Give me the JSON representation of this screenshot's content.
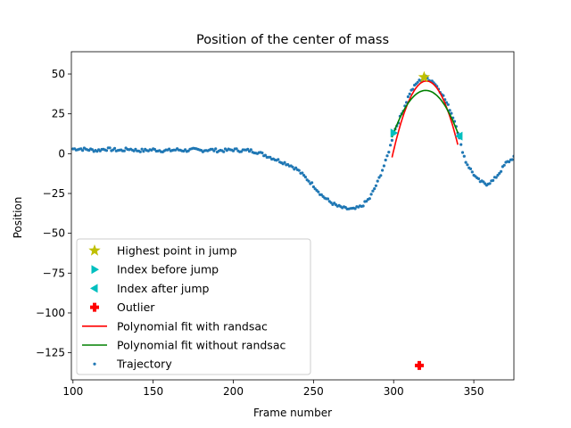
{
  "chart_data": {
    "type": "scatter",
    "title": "Position of the center of mass",
    "xlabel": "Frame number",
    "ylabel": "Position",
    "xlim": [
      99,
      375
    ],
    "ylim": [
      -142,
      64
    ],
    "xticks": [
      100,
      150,
      200,
      250,
      300,
      350
    ],
    "yticks": [
      50,
      25,
      0,
      -25,
      -50,
      -75,
      -100,
      -125
    ],
    "xtick_labels": [
      "100",
      "150",
      "200",
      "250",
      "300",
      "350"
    ],
    "ytick_labels": [
      "50",
      "25",
      "0",
      "−25",
      "−50",
      "−75",
      "−100",
      "−125"
    ],
    "grid": false,
    "legend_position": "lower-left",
    "trajectory_anchors": [
      [
        100,
        3
      ],
      [
        105,
        3
      ],
      [
        110,
        2.5
      ],
      [
        115,
        2
      ],
      [
        120,
        3
      ],
      [
        125,
        2.5
      ],
      [
        130,
        2
      ],
      [
        135,
        3
      ],
      [
        140,
        2
      ],
      [
        145,
        2
      ],
      [
        150,
        2.5
      ],
      [
        155,
        2
      ],
      [
        160,
        2
      ],
      [
        165,
        2.5
      ],
      [
        170,
        2
      ],
      [
        175,
        2.5
      ],
      [
        180,
        2
      ],
      [
        185,
        2.5
      ],
      [
        190,
        2
      ],
      [
        195,
        2
      ],
      [
        200,
        2.5
      ],
      [
        205,
        2
      ],
      [
        210,
        2
      ],
      [
        215,
        1
      ],
      [
        220,
        -1
      ],
      [
        225,
        -3
      ],
      [
        230,
        -5
      ],
      [
        235,
        -7
      ],
      [
        240,
        -10
      ],
      [
        245,
        -15
      ],
      [
        250,
        -20
      ],
      [
        255,
        -26
      ],
      [
        260,
        -30
      ],
      [
        265,
        -33
      ],
      [
        270,
        -34.5
      ],
      [
        275,
        -35
      ],
      [
        280,
        -33
      ],
      [
        285,
        -28
      ],
      [
        290,
        -18
      ],
      [
        295,
        -5
      ],
      [
        298,
        5
      ],
      [
        300,
        13
      ],
      [
        305,
        25
      ],
      [
        310,
        38
      ],
      [
        315,
        45
      ],
      [
        320,
        48
      ],
      [
        325,
        45
      ],
      [
        330,
        38
      ],
      [
        335,
        28
      ],
      [
        339,
        18
      ],
      [
        342,
        5
      ],
      [
        345,
        -5
      ],
      [
        348,
        -10
      ],
      [
        352,
        -16
      ],
      [
        355,
        -18
      ],
      [
        358,
        -19
      ],
      [
        362,
        -17
      ],
      [
        366,
        -12
      ],
      [
        370,
        -6
      ],
      [
        373,
        -4
      ],
      [
        375,
        -2
      ]
    ],
    "trajectory_noise": 1.0,
    "highest_point": {
      "x": 319,
      "y": 48
    },
    "index_before_jump": {
      "x": 300,
      "y": 13
    },
    "index_after_jump": {
      "x": 341,
      "y": 11
    },
    "outlier": {
      "x": 316,
      "y": -133
    },
    "fit_with_ransac": {
      "x_range": [
        299,
        340
      ],
      "coeffs": [
        -0.1045,
        66.97,
        -10684
      ]
    },
    "fit_without_ransac": {
      "x_range": [
        299,
        340
      ],
      "coeffs": [
        -0.0667,
        42.69,
        -6791
      ]
    },
    "legend": [
      {
        "label": "Highest point in jump",
        "marker": "star",
        "color": "#bfbf00"
      },
      {
        "label": "Index before jump",
        "marker": "triangle-right",
        "color": "#00bfbf"
      },
      {
        "label": "Index after jump",
        "marker": "triangle-left",
        "color": "#00bfbf"
      },
      {
        "label": "Outlier",
        "marker": "plus",
        "color": "#ff0000"
      },
      {
        "label": "Polynomial fit with randsac",
        "marker": "line",
        "color": "#ff0000"
      },
      {
        "label": "Polynomial fit without randsac",
        "marker": "line",
        "color": "#008000"
      },
      {
        "label": "Trajectory",
        "marker": "dot",
        "color": "#1f77b4"
      }
    ]
  }
}
